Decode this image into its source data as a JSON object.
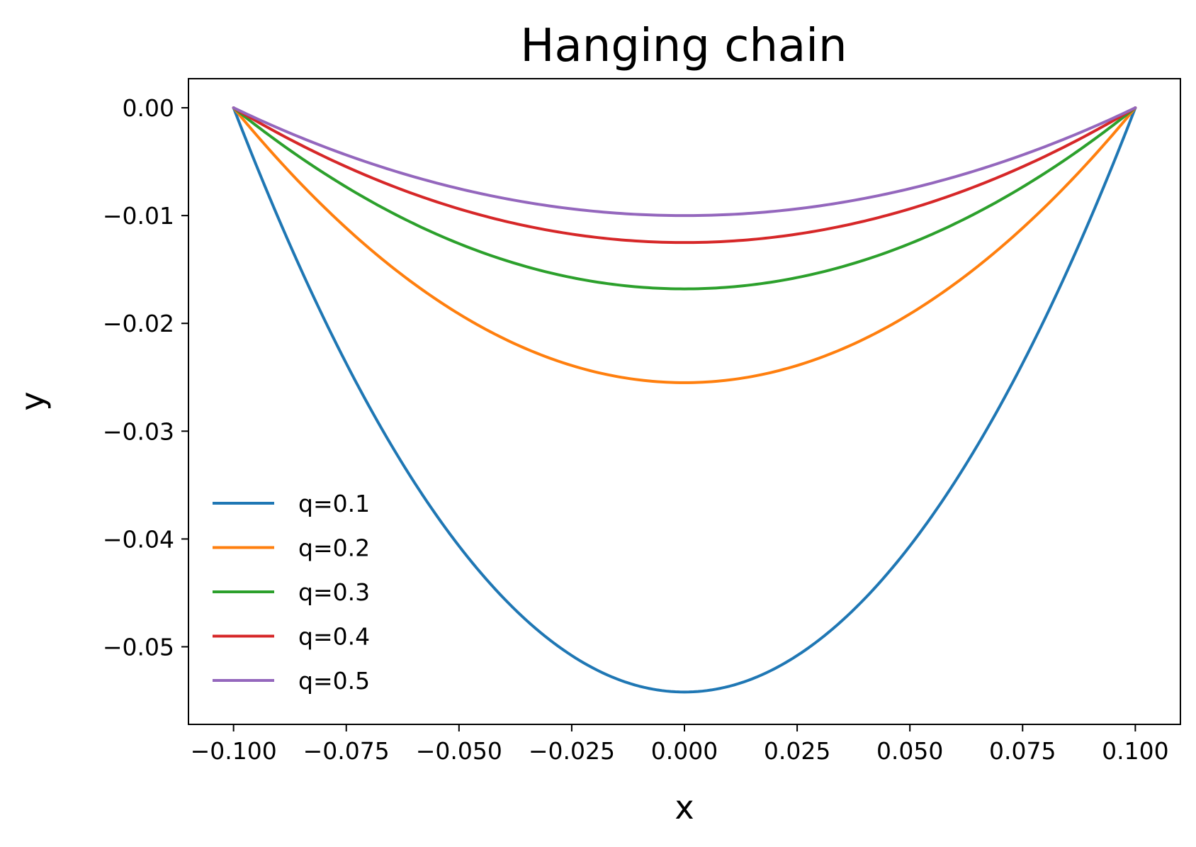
{
  "chart_data": {
    "type": "line",
    "title": "Hanging chain",
    "xlabel": "x",
    "ylabel": "y",
    "xlim": [
      -0.11,
      0.11
    ],
    "ylim": [
      -0.0572,
      0.0027
    ],
    "x_ticks": [
      -0.1,
      -0.075,
      -0.05,
      -0.025,
      0.0,
      0.025,
      0.05,
      0.075,
      0.1
    ],
    "x_tick_labels": [
      "−0.100",
      "−0.075",
      "−0.050",
      "−0.025",
      "0.000",
      "0.025",
      "0.050",
      "0.075",
      "0.100"
    ],
    "y_ticks": [
      0.0,
      -0.01,
      -0.02,
      -0.03,
      -0.04,
      -0.05
    ],
    "y_tick_labels": [
      "0.00",
      "−0.01",
      "−0.02",
      "−0.03",
      "−0.04",
      "−0.05"
    ],
    "grid": false,
    "legend_position": "lower-left",
    "x": [
      -0.1,
      -0.075,
      -0.05,
      -0.025,
      0.0,
      0.025,
      0.05,
      0.075,
      0.1
    ],
    "series": [
      {
        "name": "q=0.1",
        "color": "#1f77b4",
        "values": [
          0.0,
          -0.0248,
          -0.0406,
          -0.0504,
          -0.0542,
          -0.0504,
          -0.0406,
          -0.0248,
          0.0
        ]
      },
      {
        "name": "q=0.2",
        "color": "#ff7f0e",
        "values": [
          0.0,
          -0.011,
          -0.0185,
          -0.0235,
          -0.0255,
          -0.0235,
          -0.0185,
          -0.011,
          0.0
        ]
      },
      {
        "name": "q=0.3",
        "color": "#2ca02c",
        "values": [
          0.0,
          -0.0071,
          -0.0122,
          -0.0154,
          -0.0168,
          -0.0154,
          -0.0122,
          -0.0071,
          0.0
        ]
      },
      {
        "name": "q=0.4",
        "color": "#d62728",
        "values": [
          0.0,
          -0.0054,
          -0.0092,
          -0.0116,
          -0.0125,
          -0.0116,
          -0.0092,
          -0.0054,
          0.0
        ]
      },
      {
        "name": "q=0.5",
        "color": "#9467bd",
        "values": [
          0.0,
          -0.0044,
          -0.0074,
          -0.0093,
          -0.01,
          -0.0093,
          -0.0074,
          -0.0044,
          0.0
        ]
      }
    ]
  }
}
